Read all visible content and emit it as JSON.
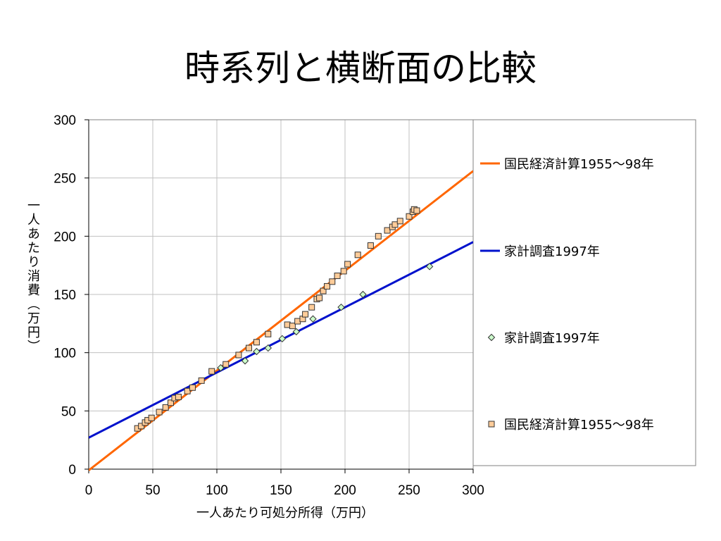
{
  "slide": {
    "title": "時系列と横断面の比較"
  },
  "chart_data": {
    "type": "scatter",
    "title": "",
    "xlabel": "一人あたり可処分所得（万円）",
    "ylabel": "一人あたり消費（万円）",
    "xlim": [
      0,
      300
    ],
    "ylim": [
      0,
      300
    ],
    "x_ticks": [
      "0",
      "50",
      "100",
      "150",
      "200",
      "250",
      "300"
    ],
    "y_ticks": [
      "0",
      "50",
      "100",
      "150",
      "200",
      "250",
      "300"
    ],
    "grid": true,
    "legend_position": "right",
    "lines": [
      {
        "name": "国民経済計算1955～98年",
        "color": "#ff6600",
        "x": [
          0,
          300
        ],
        "y": [
          -1,
          256
        ]
      },
      {
        "name": "家計調査1997年",
        "color": "#0011cc",
        "x": [
          0,
          300
        ],
        "y": [
          27,
          195
        ]
      }
    ],
    "series": [
      {
        "name": "家計調査1997年",
        "marker": "diamond",
        "color": "#ccffcc",
        "x": [
          103,
          122,
          131,
          140,
          151,
          162,
          175,
          197,
          214,
          266
        ],
        "y": [
          87,
          93,
          101,
          104,
          112,
          118,
          129,
          139,
          150,
          174
        ]
      },
      {
        "name": "国民経済計算1955～98年",
        "marker": "square",
        "color": "#ffcc99",
        "x": [
          38,
          41,
          44,
          46,
          49,
          55,
          60,
          64,
          67,
          70,
          77,
          81,
          88,
          96,
          107,
          117,
          125,
          131,
          140,
          155,
          159,
          163,
          167,
          169,
          174,
          178,
          180,
          183,
          186,
          190,
          194,
          199,
          202,
          210,
          220,
          226,
          233,
          237,
          239,
          243,
          250,
          253,
          254,
          256
        ],
        "y": [
          35,
          37,
          40,
          42,
          44,
          49,
          53,
          57,
          61,
          62,
          67,
          70,
          76,
          84,
          90,
          98,
          104,
          109,
          116,
          124,
          123,
          127,
          129,
          133,
          139,
          146,
          147,
          153,
          157,
          161,
          166,
          170,
          176,
          184,
          192,
          200,
          205,
          208,
          210,
          213,
          217,
          221,
          223,
          222
        ]
      }
    ]
  }
}
